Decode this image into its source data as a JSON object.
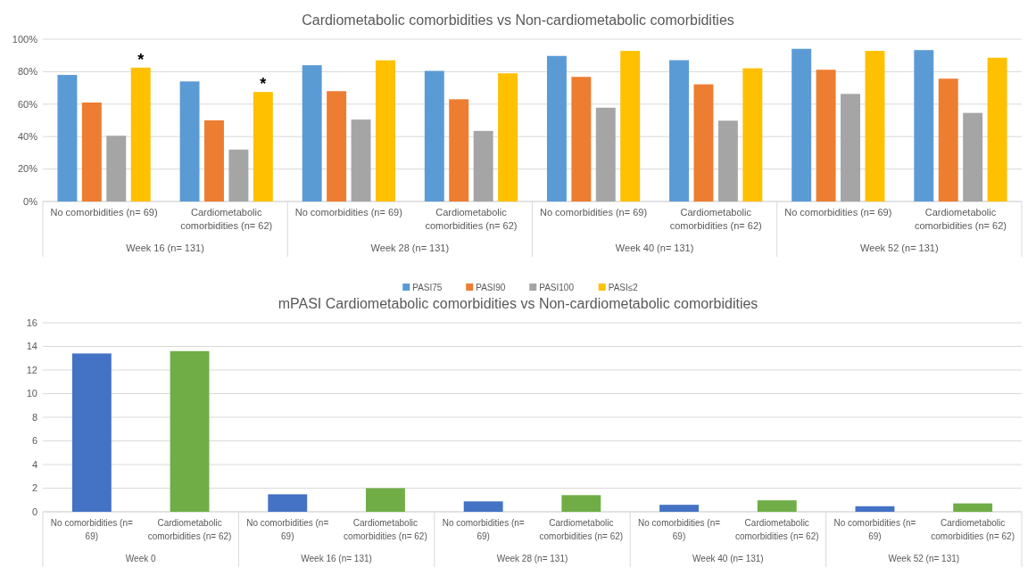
{
  "chart_data": [
    {
      "type": "bar",
      "title": "Cardiometabolic comorbidities vs Non-cardiometabolic comorbidities",
      "categories": [
        "No comorbidities (n= 69)",
        "Cardiometabolic comorbidities (n= 62)",
        "No comorbidities (n= 69)",
        "Cardiometabolic comorbidities (n= 62)",
        "No comorbidities (n= 69)",
        "Cardiometabolic comorbidities (n= 62)",
        "No comorbidities (n= 69)",
        "Cardiometabolic comorbidities (n= 62)"
      ],
      "series": [
        {
          "name": "PASI75",
          "color": "#5b9bd5",
          "values": [
            78,
            74,
            84,
            80.5,
            89.7,
            87.1,
            94.1,
            93.3
          ]
        },
        {
          "name": "PASI90",
          "color": "#ed7d31",
          "values": [
            61,
            50,
            68,
            63,
            76.8,
            72.2,
            81.2,
            75.7
          ]
        },
        {
          "name": "PASI100",
          "color": "#a5a5a5",
          "values": [
            40.5,
            32,
            50.5,
            43.5,
            57.8,
            49.8,
            66.3,
            54.6
          ]
        },
        {
          "name": "PASI≤2",
          "color": "#ffc000",
          "values": [
            82.5,
            67.5,
            87,
            79,
            92.8,
            82.1,
            92.8,
            88.6
          ],
          "value_labels": [
            "*",
            "*",
            null,
            null,
            null,
            null,
            null,
            null
          ]
        }
      ],
      "ylim": [
        0,
        100
      ],
      "yticks": [
        {
          "value": 0,
          "label": "0%"
        },
        {
          "value": 20,
          "label": "20%"
        },
        {
          "value": 40,
          "label": "40%"
        },
        {
          "value": 60,
          "label": "60%"
        },
        {
          "value": 80,
          "label": "80%"
        },
        {
          "value": 100,
          "label": "100%"
        }
      ],
      "grid": "y",
      "legend": "bottom",
      "annotations": [
        "Week 16 (n= 131)",
        "Week 28 (n= 131)",
        "Week 40 (n= 131)",
        "Week 52 (n= 131)"
      ]
    },
    {
      "type": "bar",
      "title": "mPASI Cardiometabolic comorbidities vs Non-cardiometabolic comorbidities",
      "categories": [
        "No comorbidities (n= 69)",
        "Cardiometabolic comorbidities (n= 62)",
        "No comorbidities (n= 69)",
        "Cardiometabolic comorbidities (n= 62)",
        "No comorbidities (n= 69)",
        "Cardiometabolic comorbidities (n= 62)",
        "No comorbidities (n= 69)",
        "Cardiometabolic comorbidities (n= 62)",
        "No comorbidities (n= 69)",
        "Cardiometabolic comorbidities (n= 62)"
      ],
      "values": [
        13.4,
        13.6,
        1.48,
        2.0,
        0.88,
        1.41,
        0.59,
        0.97,
        0.47,
        0.71
      ],
      "colors": [
        "#4472c4",
        "#70ad47",
        "#4472c4",
        "#70ad47",
        "#4472c4",
        "#70ad47",
        "#4472c4",
        "#70ad47",
        "#4472c4",
        "#70ad47"
      ],
      "ylim": [
        0,
        16
      ],
      "yticks": [
        0,
        2,
        4,
        6,
        8,
        10,
        12,
        14,
        16
      ],
      "grid": "y",
      "annotations": [
        "Week 0",
        "Week 16 (n= 131)",
        "Week 28 (n= 131)",
        "Week 40 (n= 131)",
        "Week 52 (n= 131)"
      ]
    }
  ]
}
